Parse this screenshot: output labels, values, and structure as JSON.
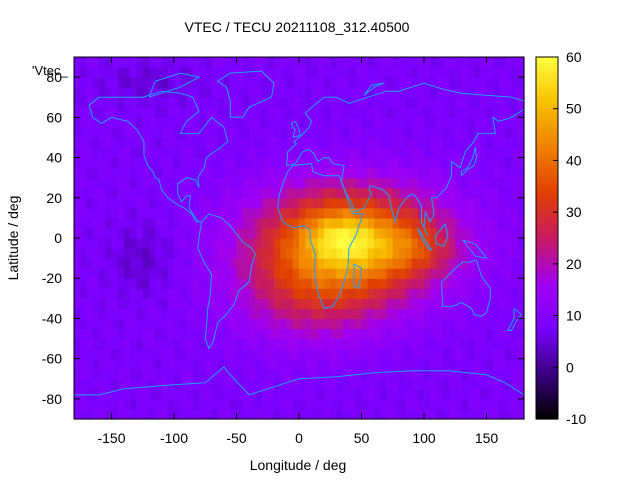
{
  "chart_data": {
    "type": "heatmap",
    "title": "VTEC / TECU 20211108_312.40500",
    "xlabel": "Longitude / deg",
    "ylabel": "Latitude / deg",
    "xlim": [
      -180,
      180
    ],
    "ylim": [
      -90,
      90
    ],
    "x_ticks": [
      -150,
      -100,
      -50,
      0,
      50,
      100,
      150
    ],
    "y_ticks": [
      -80,
      -60,
      -40,
      -20,
      0,
      20,
      40,
      60,
      80
    ],
    "colorbar": {
      "min": -10,
      "max": 60,
      "ticks": [
        -10,
        0,
        10,
        20,
        30,
        40,
        50,
        60
      ],
      "palette": [
        "#000000",
        "#3a0080",
        "#7a00ff",
        "#a000f0",
        "#c81a60",
        "#e04000",
        "#f08000",
        "#f8c000",
        "#ffff40"
      ]
    },
    "legend_entry": "'Vtec_",
    "grid": false,
    "field_description": {
      "background_level": 8,
      "polar_level": 7,
      "peak_level": 55,
      "peak_center": {
        "lon": 35,
        "lat": 0
      },
      "trough_center": {
        "lon": -125,
        "lat": -10
      }
    },
    "map_overlay": "coastlines",
    "coastline_color": "#1ea0ff"
  }
}
